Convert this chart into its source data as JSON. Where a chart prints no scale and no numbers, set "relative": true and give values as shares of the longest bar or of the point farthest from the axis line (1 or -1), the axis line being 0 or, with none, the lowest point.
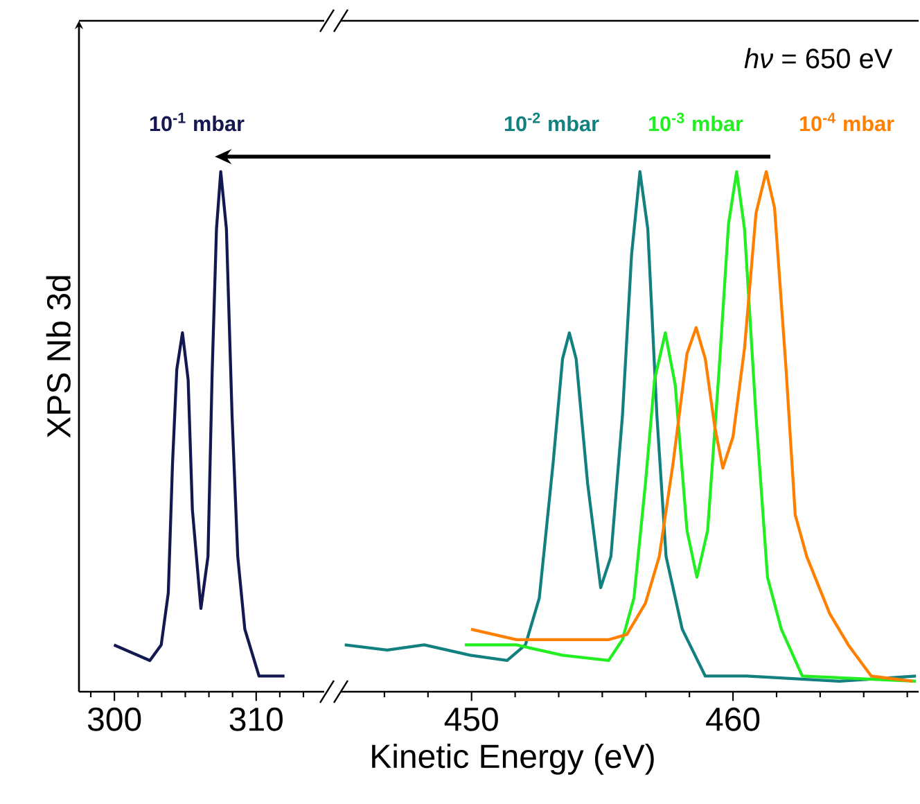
{
  "chart_data": [
    {
      "type": "line",
      "relative": true,
      "ylabel": "XPS Nb 3d",
      "xlim": [
        297.5,
        314.8
      ],
      "xticks": [
        300,
        310
      ],
      "line_style": "solid",
      "series": [
        {
          "name": "10$^{-1}$ mbar",
          "color": "#141850",
          "x": [
            299.97,
            302.5,
            303.3,
            303.8,
            304.1,
            304.4,
            304.8,
            305.2,
            305.5,
            306.1,
            306.6,
            306.9,
            307.2,
            307.5,
            307.9,
            308.3,
            308.7,
            309.2,
            310.2,
            312.0
          ],
          "values": [
            0.09,
            0.06,
            0.09,
            0.19,
            0.44,
            0.62,
            0.69,
            0.6,
            0.35,
            0.16,
            0.26,
            0.62,
            0.89,
            1.0,
            0.89,
            0.53,
            0.26,
            0.12,
            0.03,
            0.03
          ]
        }
      ]
    },
    {
      "type": "line",
      "relative": true,
      "xlabel": "Kinetic Energy (eV)",
      "xlim": [
        445,
        467.1
      ],
      "xticks": [
        450,
        460
      ],
      "line_style": "solid",
      "annotations": [
        "*hν* = 650 eV"
      ],
      "series": [
        {
          "name": "10$^{-2}$ mbar",
          "color": "#138080",
          "x": [
            445.15,
            446.77,
            448.19,
            449.95,
            451.36,
            452.06,
            452.59,
            453.12,
            453.48,
            453.74,
            454.0,
            454.44,
            454.94,
            455.33,
            455.77,
            456.12,
            456.44,
            456.74,
            457.09,
            457.44,
            458.06,
            458.94,
            460.53,
            464.06,
            467.0
          ],
          "values": [
            0.09,
            0.08,
            0.09,
            0.07,
            0.06,
            0.09,
            0.18,
            0.44,
            0.64,
            0.69,
            0.64,
            0.4,
            0.2,
            0.26,
            0.53,
            0.84,
            1.0,
            0.89,
            0.53,
            0.26,
            0.12,
            0.03,
            0.03,
            0.02,
            0.03
          ]
        },
        {
          "name": "10$^{-3}$ mbar",
          "color": "#22ee22",
          "x": [
            449.74,
            451.71,
            453.48,
            455.24,
            455.77,
            456.21,
            456.65,
            457.0,
            457.41,
            457.79,
            458.24,
            458.62,
            459.03,
            459.47,
            459.83,
            460.14,
            460.44,
            460.88,
            461.32,
            461.85,
            462.65,
            467.0
          ],
          "values": [
            0.09,
            0.09,
            0.07,
            0.06,
            0.1,
            0.18,
            0.4,
            0.6,
            0.69,
            0.59,
            0.31,
            0.22,
            0.31,
            0.62,
            0.9,
            1.0,
            0.89,
            0.53,
            0.22,
            0.12,
            0.03,
            0.02
          ]
        },
        {
          "name": "10$^{-4}$ mbar",
          "color": "#ff8000",
          "x": [
            449.98,
            451.71,
            453.48,
            455.24,
            455.94,
            456.65,
            457.18,
            457.71,
            458.24,
            458.59,
            458.94,
            459.3,
            459.61,
            460.0,
            460.44,
            460.88,
            461.27,
            461.59,
            462.03,
            462.38,
            462.82,
            463.7,
            464.41,
            465.29,
            466.88
          ],
          "values": [
            0.12,
            0.1,
            0.1,
            0.1,
            0.11,
            0.17,
            0.26,
            0.44,
            0.65,
            0.7,
            0.64,
            0.51,
            0.43,
            0.49,
            0.66,
            0.92,
            1.0,
            0.93,
            0.62,
            0.34,
            0.26,
            0.15,
            0.09,
            0.03,
            0.02
          ]
        }
      ]
    }
  ]
}
